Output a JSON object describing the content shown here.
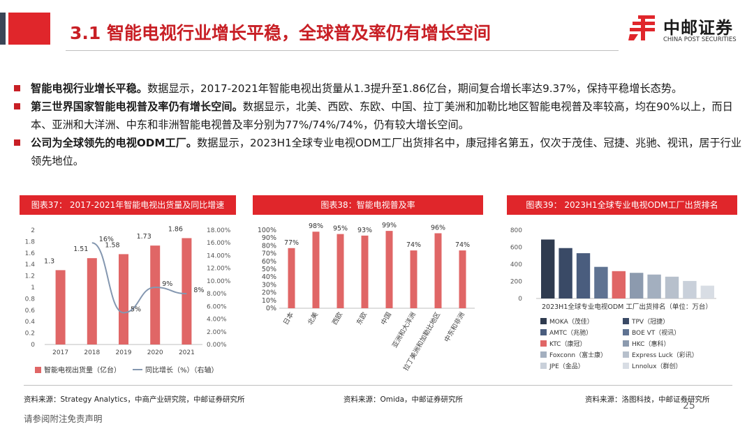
{
  "header": {
    "title": "3.1 智能电视行业增长平稳，全球普及率仍有增长空间",
    "logo_cn": "中邮证券",
    "logo_en": "CHINA POST SECURITIES",
    "brand_color": "#e0262b"
  },
  "bullets": [
    {
      "bold": "智能电视行业增长平稳。",
      "text": "数据显示，2017-2021年智能电视出货量从1.3提升至1.86亿台，期间复合增长率达9.37%，保持平稳增长态势。"
    },
    {
      "bold": "第三世界国家智能电视普及率仍有增长空间。",
      "text": "数据显示，北美、西欧、东欧、中国、拉丁美洲和加勒比地区智能电视普及率较高，均在90%以上，而日本、亚洲和大洋洲、中东和非洲智能电视普及率分别为77%/74%/74%，仍有较大增长空间。"
    },
    {
      "bold": "公司为全球领先的电视ODM工厂。",
      "text": "数据显示，2023H1全球专业电视ODM工厂出货排名中，康冠排名第五，仅次于茂佳、冠捷、兆驰、视讯，居于行业领先地位。"
    }
  ],
  "charts": {
    "c1_title": "图表37： 2017-2021年智能电视出货量及同比增速",
    "c2_title": "图表38：智能电视普及率",
    "c3_title": "图表39： 2023H1全球专业电视ODM工厂出货排名",
    "c1_legend_bar": "智能电视出货量（亿台）",
    "c1_legend_line": "同比增长（%）（右轴）",
    "c3_xlabel": "2023H1全球专业电视ODM 工厂出货排名（单位：万台）"
  },
  "chart_data": [
    {
      "type": "bar",
      "title": "图表37： 2017-2021年智能电视出货量及同比增速",
      "categories": [
        "2017",
        "2018",
        "2019",
        "2020",
        "2021"
      ],
      "series": [
        {
          "name": "智能电视出货量（亿台）",
          "type": "bar",
          "values": [
            1.3,
            1.51,
            1.58,
            1.73,
            1.86
          ],
          "labels": [
            "1.3",
            "1.51",
            "1.58",
            "1.73",
            "1.86"
          ],
          "color": "#e06666"
        },
        {
          "name": "同比增长（%）（右轴）",
          "type": "line",
          "x": [
            "2018",
            "2019",
            "2020",
            "2021"
          ],
          "values": [
            16,
            5,
            9,
            8
          ],
          "labels": [
            "16%",
            "5%",
            "9%",
            "8%"
          ],
          "color": "#8497b0"
        }
      ],
      "ylim": [
        0,
        2
      ],
      "yticks": [
        "0",
        "0.2",
        "0.4",
        "0.6",
        "0.8",
        "1",
        "1.2",
        "1.4",
        "1.6",
        "1.8",
        "2"
      ],
      "y2lim": [
        0,
        18
      ],
      "y2ticks": [
        "0.00%",
        "2.00%",
        "4.00%",
        "6.00%",
        "8.00%",
        "10.00%",
        "12.00%",
        "14.00%",
        "16.00%",
        "18.00%"
      ]
    },
    {
      "type": "bar",
      "title": "图表38：智能电视普及率",
      "categories": [
        "日本",
        "北美",
        "西欧",
        "东欧",
        "中国",
        "亚洲和大洋洲",
        "拉丁美洲和加勒比地区",
        "中东和非洲"
      ],
      "values": [
        77,
        98,
        95,
        93,
        99,
        74,
        96,
        74
      ],
      "labels": [
        "77%",
        "98%",
        "95%",
        "93%",
        "99%",
        "74%",
        "96%",
        "74%"
      ],
      "ylim": [
        0,
        100
      ],
      "yticks": [
        "0%",
        "10%",
        "20%",
        "30%",
        "40%",
        "50%",
        "60%",
        "70%",
        "80%",
        "90%",
        "100%"
      ],
      "color": "#e06666"
    },
    {
      "type": "bar",
      "title": "图表39： 2023H1全球专业电视ODM工厂出货排名",
      "xlabel": "2023H1全球专业电视ODM 工厂出货排名（单位：万台）",
      "categories": [
        "MOKA（茂佳）",
        "TPV（冠捷）",
        "AMTC（兆驰）",
        "BOE VT（视讯）",
        "KTC（康冠）",
        "HKC（惠科）",
        "Foxconn（富士康）",
        "Express Luck（彩讯）",
        "JPE（金品）",
        "Lnnolux（群创）"
      ],
      "values": [
        690,
        590,
        530,
        370,
        320,
        300,
        280,
        255,
        205,
        150
      ],
      "colors": [
        "#2f3b4f",
        "#3a4a66",
        "#4a5d7e",
        "#5f7392",
        "#e06666",
        "#8c9aae",
        "#a3afbf",
        "#b7c0cc",
        "#c9d0da",
        "#d8dde4"
      ],
      "ylim": [
        0,
        800
      ],
      "yticks": [
        "0",
        "200",
        "400",
        "600",
        "800"
      ]
    }
  ],
  "footer": {
    "source1": "资料来源：Strategy Analytics，中商产业研究院，中邮证券研究所",
    "source2": "资料来源：Omida，中邮证券研究所",
    "source3": "资料来源：洛图科技，中邮证券研究所",
    "page_number": "25",
    "disclaimer": "请参阅附注免责声明"
  }
}
